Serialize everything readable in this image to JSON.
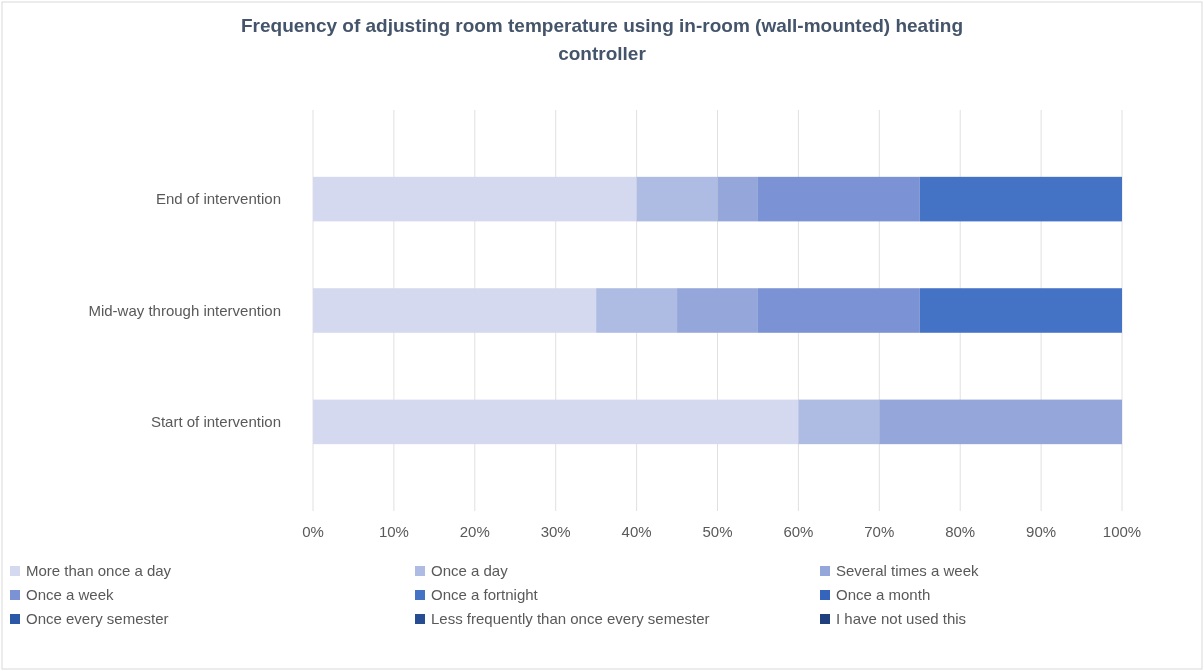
{
  "chart_data": {
    "type": "bar",
    "orientation": "horizontal",
    "stacked": true,
    "title": "Frequency of adjusting room temperature using in-room (wall-mounted) heating controller",
    "categories": [
      "End of intervention",
      "Mid-way through intervention",
      "Start of intervention"
    ],
    "series": [
      {
        "name": "More than once a day",
        "color": "#d5d9ef",
        "values": [
          40,
          35,
          60
        ]
      },
      {
        "name": "Once a day",
        "color": "#aebbe2",
        "values": [
          10,
          10,
          10
        ]
      },
      {
        "name": "Several times a week",
        "color": "#95a7da",
        "values": [
          5,
          10,
          30
        ]
      },
      {
        "name": "Once a week",
        "color": "#7b93d4",
        "values": [
          20,
          20,
          null
        ]
      },
      {
        "name": "Once a fortnight",
        "color": "#4472c4",
        "values": [
          25,
          25,
          null
        ]
      },
      {
        "name": "Once a month",
        "color": "#3464bc",
        "values": [
          null,
          null,
          null
        ]
      },
      {
        "name": "Once every semester",
        "color": "#2c58a8",
        "values": [
          null,
          null,
          null
        ]
      },
      {
        "name": "Less frequently than once every semester",
        "color": "#264c92",
        "values": [
          null,
          null,
          null
        ]
      },
      {
        "name": "I have not used this",
        "color": "#1f3f7d",
        "values": [
          null,
          null,
          null
        ]
      }
    ],
    "xlim": [
      0,
      100
    ],
    "xticks": [
      {
        "value": 0,
        "label": "0%"
      },
      {
        "value": 10,
        "label": "10%"
      },
      {
        "value": 20,
        "label": "20%"
      },
      {
        "value": 30,
        "label": "30%"
      },
      {
        "value": 40,
        "label": "40%"
      },
      {
        "value": 50,
        "label": "50%"
      },
      {
        "value": 60,
        "label": "60%"
      },
      {
        "value": 70,
        "label": "70%"
      },
      {
        "value": 80,
        "label": "80%"
      },
      {
        "value": 90,
        "label": "90%"
      },
      {
        "value": 100,
        "label": "100%"
      }
    ],
    "grid": "x",
    "legend": "bottom"
  }
}
